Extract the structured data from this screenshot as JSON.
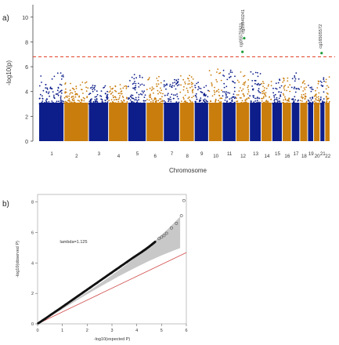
{
  "panels": {
    "a_label": "a)",
    "b_label": "b)"
  },
  "chart_data": [
    {
      "type": "scatter",
      "subtype": "manhattan",
      "title": "",
      "xlabel": "Chromosome",
      "ylabel": "-log10(p)",
      "ylim": [
        0,
        11
      ],
      "yticks": [
        0,
        2,
        4,
        6,
        8,
        10
      ],
      "threshold": 6.8,
      "threshold_color": "#e03a1e",
      "colors": {
        "odd": "#0d1e8a",
        "even": "#c97d0d",
        "highlight": "#1f9d3a"
      },
      "chromosomes": [
        {
          "label": "1",
          "width": 249,
          "peak": 5.6,
          "color": "odd"
        },
        {
          "label": "2",
          "width": 243,
          "peak": 4.8,
          "color": "even"
        },
        {
          "label": "3",
          "width": 198,
          "peak": 4.6,
          "color": "odd"
        },
        {
          "label": "4",
          "width": 191,
          "peak": 4.7,
          "color": "even"
        },
        {
          "label": "5",
          "width": 181,
          "peak": 5.4,
          "color": "odd"
        },
        {
          "label": "6",
          "width": 171,
          "peak": 5.2,
          "color": "even"
        },
        {
          "label": "7",
          "width": 159,
          "peak": 5.0,
          "color": "odd"
        },
        {
          "label": "8",
          "width": 146,
          "peak": 5.3,
          "color": "even"
        },
        {
          "label": "9",
          "width": 141,
          "peak": 4.8,
          "color": "odd"
        },
        {
          "label": "10",
          "width": 136,
          "peak": 5.8,
          "color": "even"
        },
        {
          "label": "11",
          "width": 135,
          "peak": 5.9,
          "color": "odd"
        },
        {
          "label": "12",
          "width": 134,
          "peak": 5.6,
          "color": "even"
        },
        {
          "label": "13",
          "width": 115,
          "peak": 5.6,
          "color": "odd"
        },
        {
          "label": "14",
          "width": 107,
          "peak": 4.9,
          "color": "even"
        },
        {
          "label": "15",
          "width": 102,
          "peak": 5.0,
          "color": "odd"
        },
        {
          "label": "16",
          "width": 90,
          "peak": 5.1,
          "color": "even"
        },
        {
          "label": "17",
          "width": 83,
          "peak": 5.8,
          "color": "odd"
        },
        {
          "label": "18",
          "width": 78,
          "peak": 4.9,
          "color": "even"
        },
        {
          "label": "19",
          "width": 59,
          "peak": 4.7,
          "color": "odd"
        },
        {
          "label": "20",
          "width": 63,
          "peak": 5.1,
          "color": "even"
        },
        {
          "label": "21",
          "width": 48,
          "peak": 5.4,
          "color": "odd"
        },
        {
          "label": "22",
          "width": 51,
          "peak": 5.2,
          "color": "even"
        }
      ],
      "highlights": [
        {
          "label": "cg05575921",
          "chromosome": "12",
          "pos": 0.45,
          "y": 7.2
        },
        {
          "label": "cg15840241",
          "chromosome": "12",
          "pos": 0.58,
          "y": 8.3
        },
        {
          "label": "cg16505572",
          "chromosome": "21",
          "pos": 0.25,
          "y": 7.1
        }
      ]
    },
    {
      "type": "scatter",
      "subtype": "qq",
      "title": "",
      "xlabel": "-log10(expected P)",
      "ylabel": "-log10(observed P)",
      "xlim": [
        0,
        6
      ],
      "ylim": [
        0,
        8.5
      ],
      "xticks": [
        0,
        1,
        2,
        3,
        4,
        5,
        6
      ],
      "yticks": [
        0,
        2,
        4,
        6,
        8
      ],
      "annotation": "lambda=1.125",
      "lambda": 1.125,
      "colors": {
        "points": "#111111",
        "reference": "#d24b4b",
        "band": "#b5b5b5",
        "outliers": "#555555"
      },
      "points": [
        [
          0.02,
          0.03
        ],
        [
          0.3,
          0.33
        ],
        [
          0.6,
          0.67
        ],
        [
          0.9,
          1.0
        ],
        [
          1.2,
          1.34
        ],
        [
          1.5,
          1.68
        ],
        [
          1.8,
          2.02
        ],
        [
          2.1,
          2.36
        ],
        [
          2.4,
          2.7
        ],
        [
          2.7,
          3.04
        ],
        [
          3.0,
          3.38
        ],
        [
          3.3,
          3.72
        ],
        [
          3.6,
          4.06
        ],
        [
          3.9,
          4.4
        ],
        [
          4.2,
          4.72
        ],
        [
          4.4,
          4.95
        ],
        [
          4.6,
          5.2
        ],
        [
          4.75,
          5.4
        ]
      ],
      "outliers": [
        [
          4.9,
          5.6
        ],
        [
          5.0,
          5.7
        ],
        [
          5.1,
          5.8
        ],
        [
          5.2,
          5.95
        ],
        [
          5.4,
          6.3
        ],
        [
          5.6,
          6.6
        ],
        [
          5.8,
          7.1
        ],
        [
          5.9,
          8.1
        ]
      ]
    }
  ]
}
